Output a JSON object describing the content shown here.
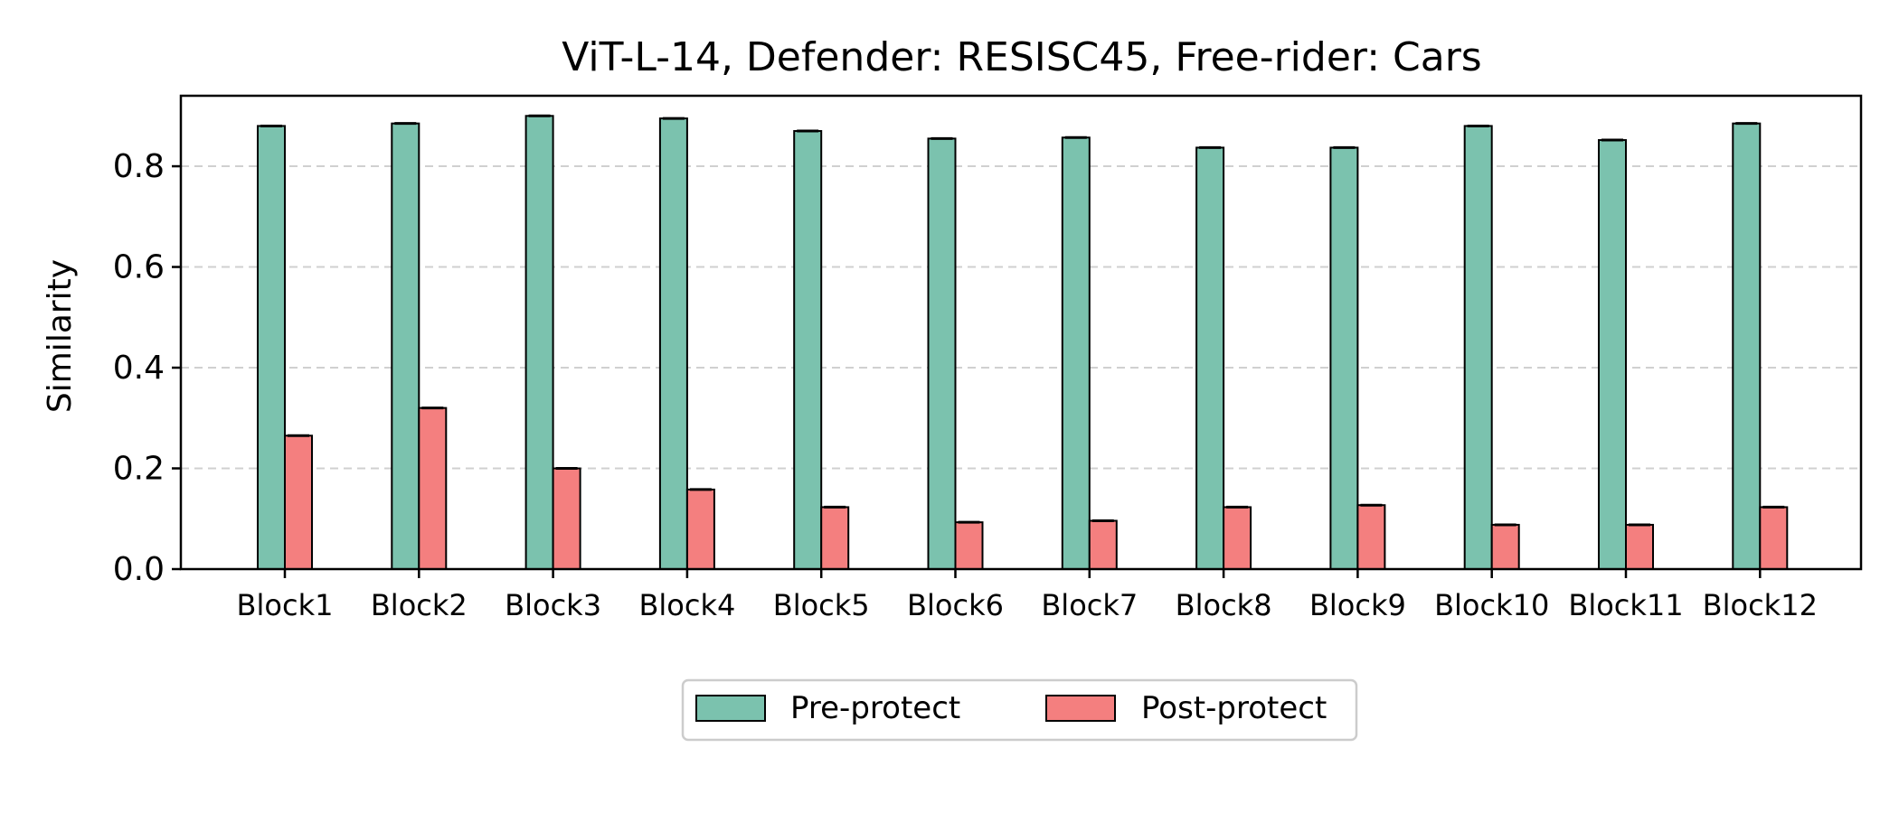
{
  "chart_data": {
    "type": "bar",
    "title": "ViT-L-14, Defender: RESISC45, Free-rider: Cars",
    "xlabel": "",
    "ylabel": "Similarity",
    "ylim": [
      0,
      0.94
    ],
    "yticks": [
      0.0,
      0.2,
      0.4,
      0.6,
      0.8
    ],
    "ytick_labels": [
      "0.0",
      "0.2",
      "0.4",
      "0.6",
      "0.8"
    ],
    "grid": "y-dashed",
    "legend_position": "bottom-center",
    "categories": [
      "Block1",
      "Block2",
      "Block3",
      "Block4",
      "Block5",
      "Block6",
      "Block7",
      "Block8",
      "Block9",
      "Block10",
      "Block11",
      "Block12"
    ],
    "series": [
      {
        "name": "Pre-protect",
        "color": "#7bc2ae",
        "values": [
          0.88,
          0.885,
          0.9,
          0.895,
          0.87,
          0.855,
          0.857,
          0.837,
          0.837,
          0.88,
          0.852,
          0.885
        ]
      },
      {
        "name": "Post-protect",
        "color": "#f47f7f",
        "values": [
          0.265,
          0.32,
          0.2,
          0.158,
          0.123,
          0.093,
          0.096,
          0.123,
          0.127,
          0.088,
          0.088,
          0.123
        ]
      }
    ]
  }
}
